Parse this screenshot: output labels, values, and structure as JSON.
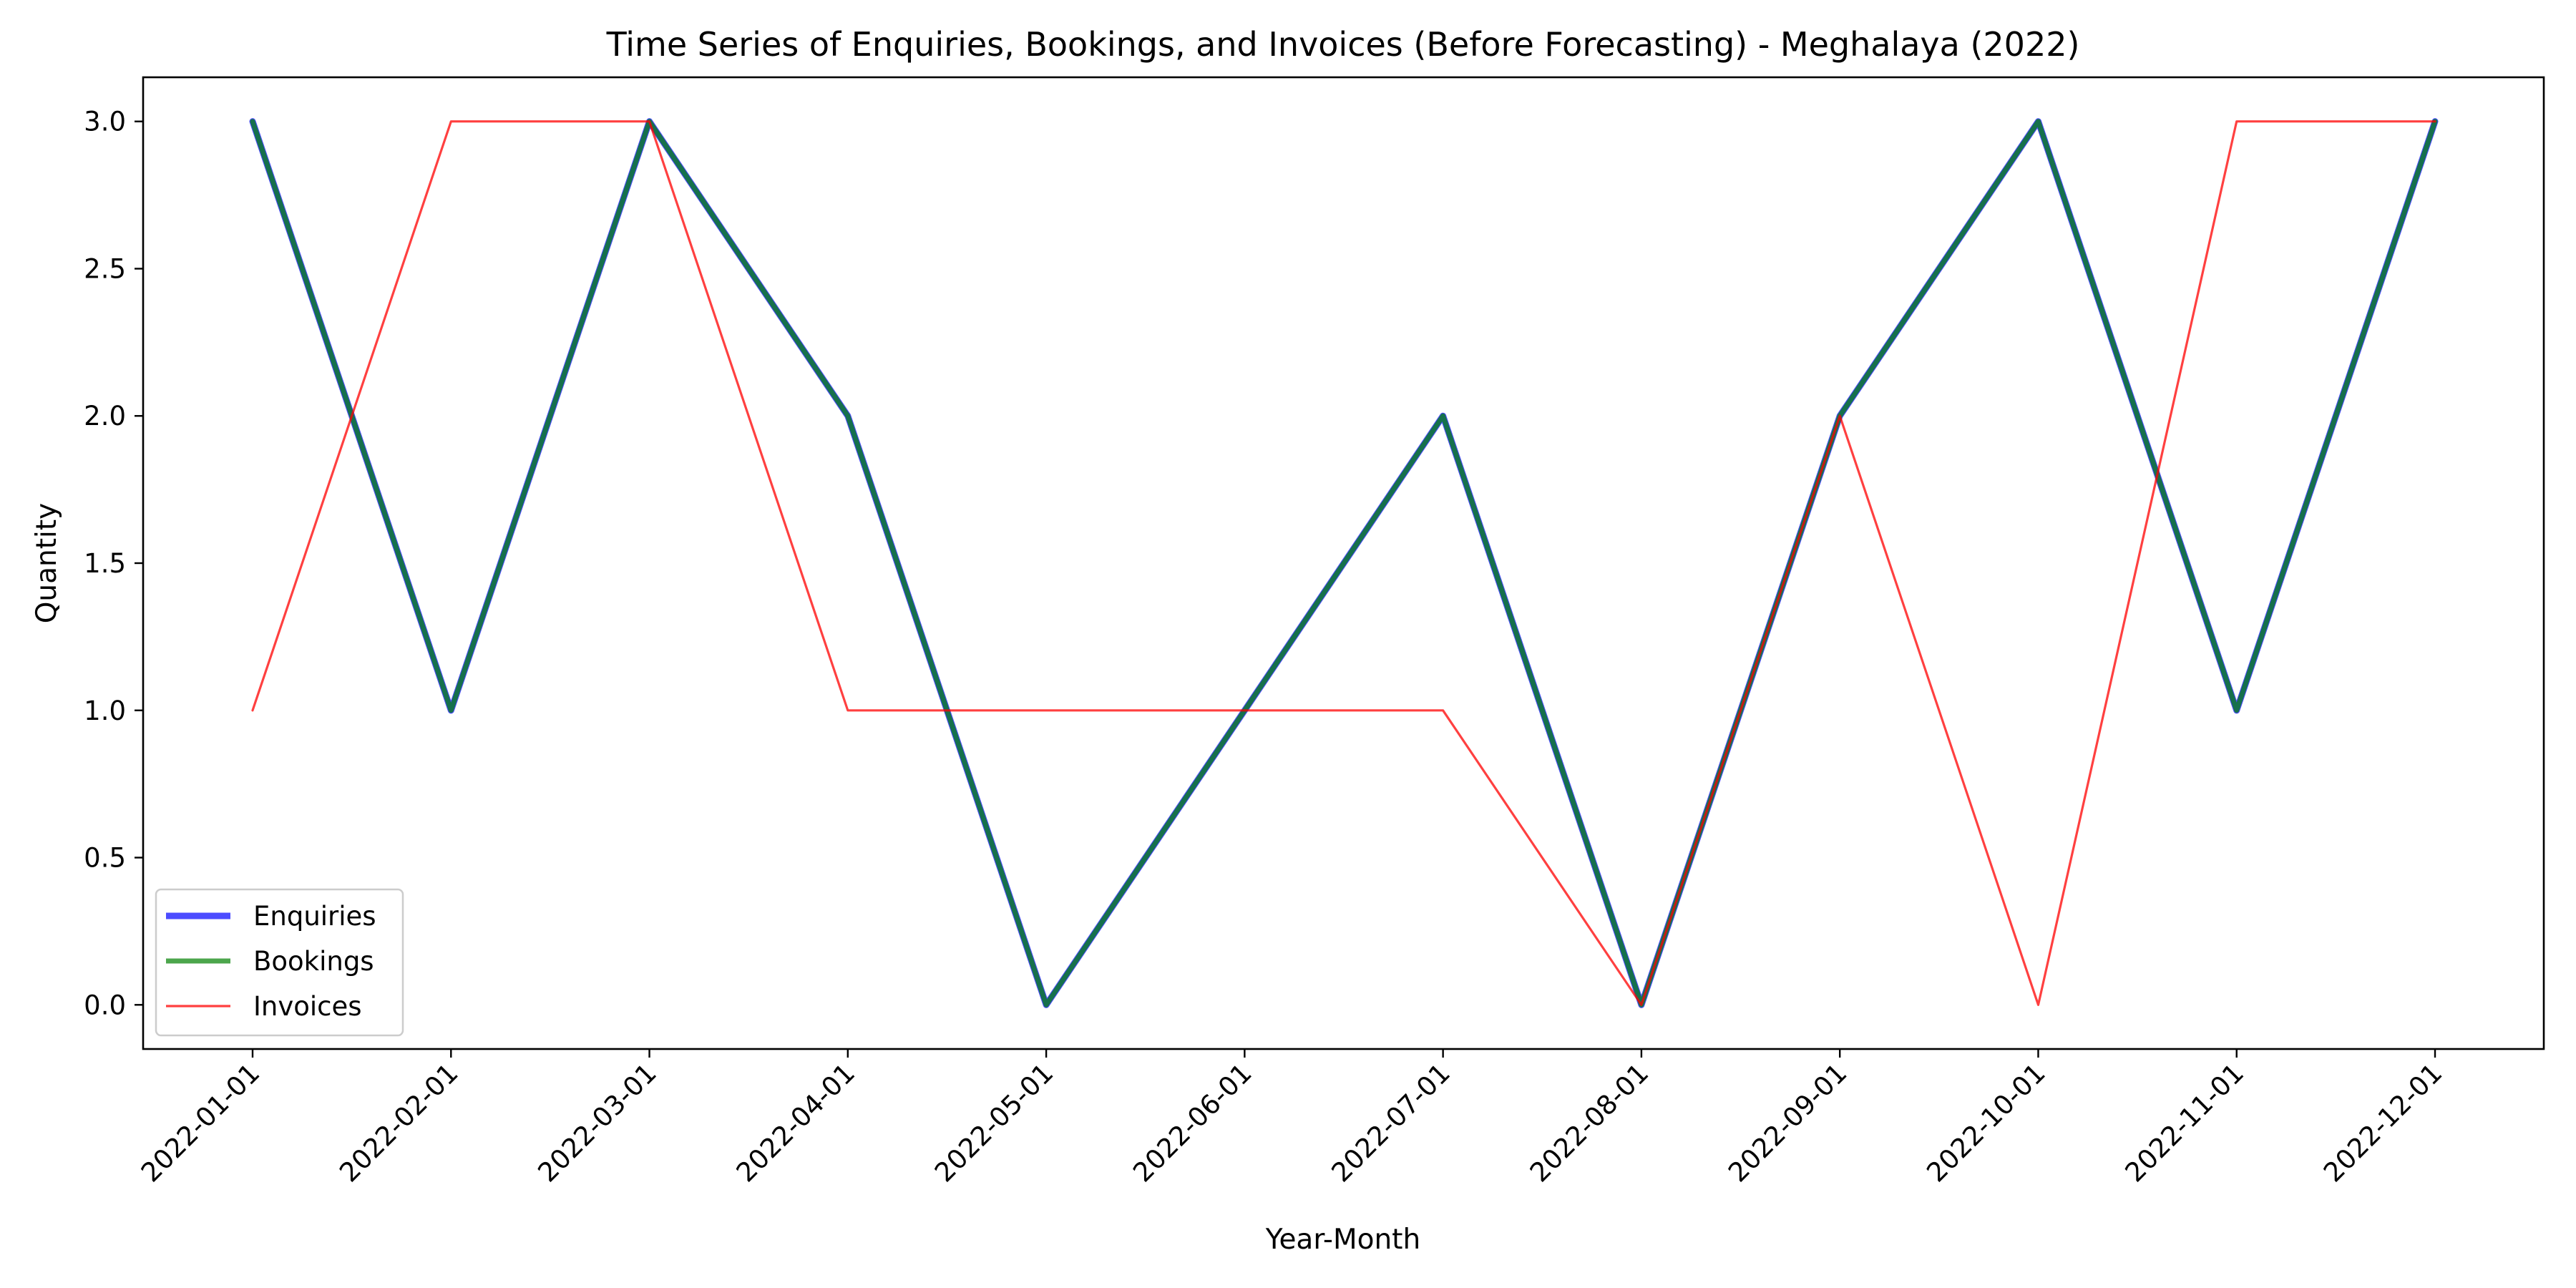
{
  "chart_data": {
    "type": "line",
    "title": "Time Series of Enquiries, Bookings, and Invoices (Before Forecasting) - Meghalaya (2022)",
    "xlabel": "Year-Month",
    "ylabel": "Quantity",
    "x": [
      "2022-01-01",
      "2022-02-01",
      "2022-03-01",
      "2022-04-01",
      "2022-05-01",
      "2022-06-01",
      "2022-07-01",
      "2022-08-01",
      "2022-09-01",
      "2022-10-01",
      "2022-11-01",
      "2022-12-01"
    ],
    "yticks": [
      "0.0",
      "0.5",
      "1.0",
      "1.5",
      "2.0",
      "2.5",
      "3.0"
    ],
    "ylim": [
      -0.15,
      3.15
    ],
    "grid": false,
    "legend_position": "lower-left",
    "series": [
      {
        "name": "Enquiries",
        "values": [
          3,
          1,
          3,
          2,
          0,
          1,
          2,
          0,
          2,
          3,
          1,
          3
        ],
        "color": "#0000ff",
        "alpha": 0.7,
        "weight": "thick"
      },
      {
        "name": "Bookings",
        "values": [
          3,
          1,
          3,
          2,
          0,
          1,
          2,
          0,
          2,
          3,
          1,
          3
        ],
        "color": "#008000",
        "alpha": 0.7,
        "weight": "medium"
      },
      {
        "name": "Invoices",
        "values": [
          1,
          3,
          3,
          1,
          1,
          1,
          1,
          0,
          2,
          0,
          3,
          3
        ],
        "color": "#ff0000",
        "alpha": 0.75,
        "weight": "thin"
      }
    ]
  }
}
